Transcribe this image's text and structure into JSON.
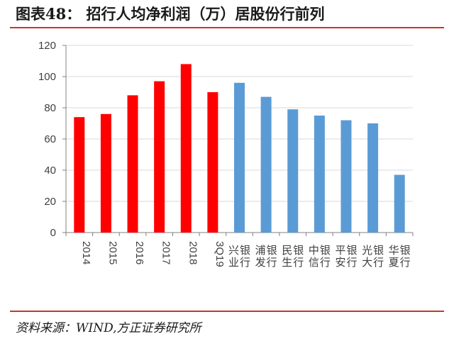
{
  "header": {
    "title": "图表48：  招行人均净利润（万）居股份行前列"
  },
  "footer": {
    "source": "资料来源：WIND,方正证券研究所"
  },
  "chart_data": {
    "type": "bar",
    "categories": [
      "2014",
      "2015",
      "2016",
      "2017",
      "2018",
      "3Q19",
      "兴业银行",
      "浦发银行",
      "民生银行",
      "中信银行",
      "平安银行",
      "光大银行",
      "华夏银行"
    ],
    "values": [
      74,
      76,
      88,
      97,
      108,
      90,
      96,
      87,
      79,
      75,
      72,
      70,
      37
    ],
    "bar_colors": [
      "#ff0000",
      "#ff0000",
      "#ff0000",
      "#ff0000",
      "#ff0000",
      "#ff0000",
      "#5b9bd5",
      "#5b9bd5",
      "#5b9bd5",
      "#5b9bd5",
      "#5b9bd5",
      "#5b9bd5",
      "#5b9bd5"
    ],
    "ylim": [
      0,
      120
    ],
    "yticks": [
      0,
      20,
      40,
      60,
      80,
      100,
      120
    ],
    "grid": true,
    "title": "",
    "xlabel": "",
    "ylabel": ""
  }
}
